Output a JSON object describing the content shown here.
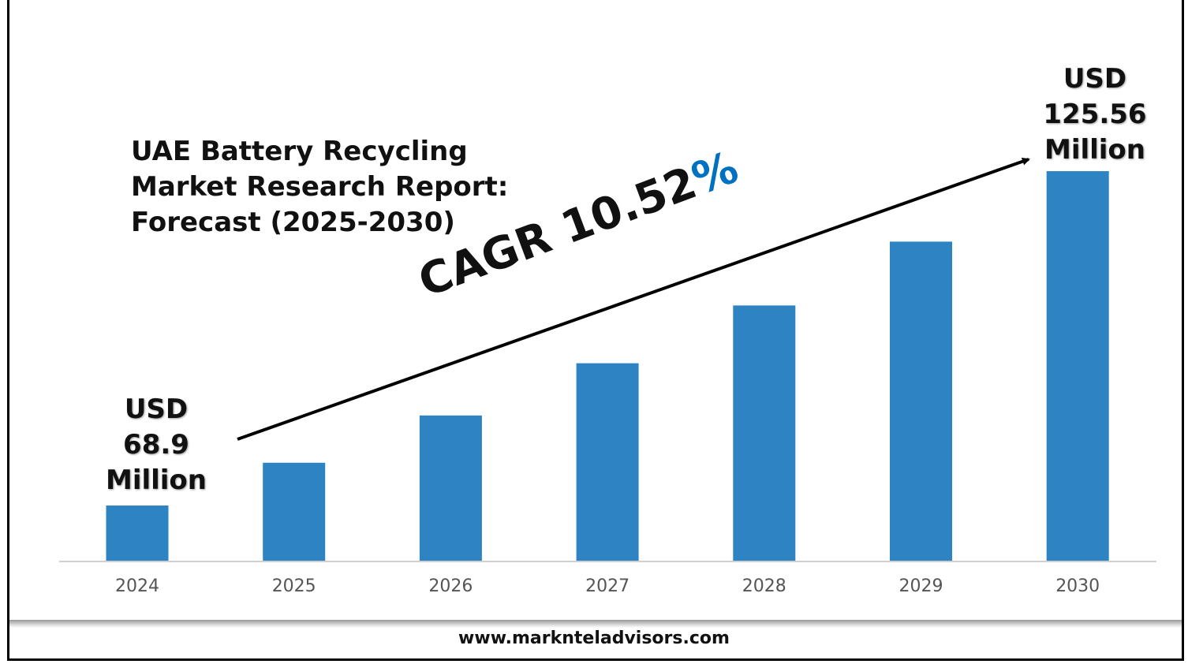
{
  "chart_data": {
    "type": "bar",
    "title": [
      "UAE Battery Recycling",
      "Market Research Report:",
      "Forecast (2025-2030)"
    ],
    "categories": [
      "2024",
      "2025",
      "2026",
      "2027",
      "2028",
      "2029",
      "2030"
    ],
    "values": [
      68.9,
      76.15,
      84.16,
      93.01,
      102.8,
      113.62,
      125.56
    ],
    "values_note_labeled": {
      "2024": 68.9,
      "2030": 125.56
    },
    "unit": "USD Million",
    "start_label": [
      "USD",
      "68.9",
      "Million"
    ],
    "end_label": [
      "USD",
      "125.56",
      "Million"
    ],
    "annotation": {
      "text": "CAGR 10.52",
      "percent": "%"
    },
    "xlabel": "",
    "ylabel": "",
    "grid": false,
    "legend": "none",
    "colors": {
      "bar": "#2E83C3",
      "percent": "#0070C0",
      "arrow": "#000000"
    }
  },
  "footer": "www.marknteladvisors.com"
}
